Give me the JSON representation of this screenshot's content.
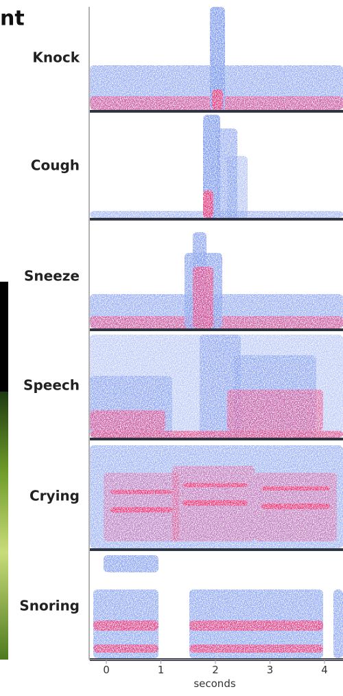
{
  "heading": "nt",
  "panels": [
    {
      "label": "Knock"
    },
    {
      "label": "Cough"
    },
    {
      "label": "Sneeze"
    },
    {
      "label": "Speech"
    },
    {
      "label": "Crying"
    },
    {
      "label": "Snoring"
    }
  ],
  "axis": {
    "ticks": [
      0,
      1,
      2,
      3,
      4
    ],
    "label": "seconds"
  }
}
